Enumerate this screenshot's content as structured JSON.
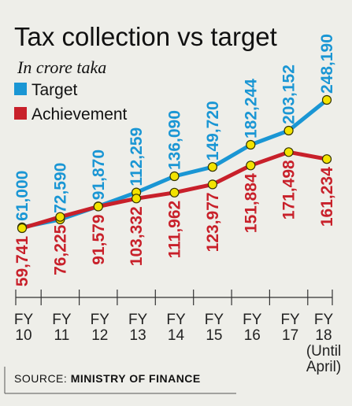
{
  "chart_data": {
    "type": "line",
    "title": "Tax collection vs target",
    "subtitle": "In crore taka",
    "categories": [
      [
        "FY",
        "10"
      ],
      [
        "FY",
        "11"
      ],
      [
        "FY",
        "12"
      ],
      [
        "FY",
        "13"
      ],
      [
        "FY",
        "14"
      ],
      [
        "FY",
        "15"
      ],
      [
        "FY",
        "16"
      ],
      [
        "FY",
        "17"
      ],
      [
        "FY",
        "18",
        "(Until",
        "April)"
      ]
    ],
    "series": [
      {
        "name": "Target",
        "color": "#1a96d4",
        "values": [
          61000,
          72590,
          91870,
          112259,
          136090,
          149720,
          182244,
          203152,
          248190
        ],
        "labels": [
          "61,000",
          "72,590",
          "91,870",
          "112,259",
          "136,090",
          "149,720",
          "182,244",
          "203,152",
          "248,190"
        ]
      },
      {
        "name": "Achievement",
        "color": "#c8202a",
        "values": [
          59741,
          76225,
          91579,
          103332,
          111962,
          123977,
          151884,
          171498,
          161234
        ],
        "labels": [
          "59,741",
          "76,225",
          "91,579",
          "103,332",
          "111,962",
          "123,977",
          "151,884",
          "171,498",
          "161,234"
        ]
      }
    ],
    "marker_color": "#f3e300",
    "legend_position": "top-left",
    "grid": false
  },
  "source": {
    "prefix": "SOURCE: ",
    "name": "MINISTRY OF FINANCE"
  }
}
